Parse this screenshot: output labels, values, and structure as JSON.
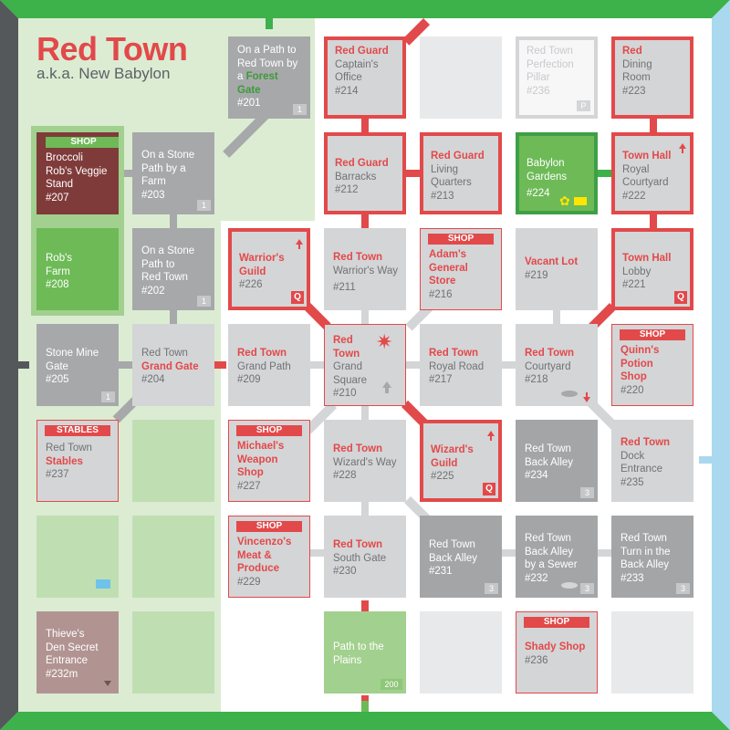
{
  "map": {
    "title": "Red Town",
    "subtitle": "a.k.a. New Babylon",
    "shop_label": "SHOP",
    "stables_label": "STABLES",
    "rooms": [
      {
        "key": "forest_gate_path",
        "lines": [
          "On a Path to",
          "Red Town by"
        ],
        "hl_line": "a ",
        "hl_word": "Forest Gate",
        "id": "#201",
        "badge": "1"
      },
      {
        "key": "veggie_stand",
        "lines": [
          "Broccoli",
          "Rob's Veggie",
          "Stand"
        ],
        "id": "#207"
      },
      {
        "key": "stone_path_farm",
        "lines": [
          "On a Stone",
          "Path by a",
          "Farm"
        ],
        "id": "#203",
        "badge": "1"
      },
      {
        "key": "robs_farm",
        "lines": [
          "Rob's",
          "Farm"
        ],
        "id": "#208"
      },
      {
        "key": "stone_path_town",
        "lines": [
          "On a Stone",
          "Path to",
          "Red Town"
        ],
        "id": "#202",
        "badge": "1"
      },
      {
        "key": "stone_mine_gate",
        "lines": [
          "Stone Mine",
          "Gate"
        ],
        "id": "#205",
        "badge": "1"
      },
      {
        "key": "grand_gate",
        "lines": [
          "Red Town"
        ],
        "hl": "Grand Gate",
        "id": "#204"
      },
      {
        "key": "stables",
        "lines": [
          "Red Town"
        ],
        "hl": "Stables",
        "id": "#237"
      },
      {
        "key": "thieves_den",
        "lines": [
          "Thieve's",
          "Den Secret",
          "Entrance"
        ],
        "id": "#232m"
      },
      {
        "key": "captains_office",
        "hl": "Red Guard",
        "lines": [
          "Captain's",
          "Office"
        ],
        "id": "#214"
      },
      {
        "key": "perfection_pillar",
        "lines": [
          "Red Town",
          "Perfection",
          "Pillar"
        ],
        "id": "#236",
        "badge": "P"
      },
      {
        "key": "dining_room",
        "hl": "Red",
        "lines": [
          "Dining",
          "Room"
        ],
        "id": "#223"
      },
      {
        "key": "barracks",
        "hl": "Red Guard",
        "lines": [
          "Barracks"
        ],
        "id": "#212"
      },
      {
        "key": "living_quarters",
        "hl": "Red Guard",
        "lines": [
          "Living",
          "Quarters"
        ],
        "id": "#213"
      },
      {
        "key": "babylon_gardens",
        "lines": [
          "Babylon",
          "Gardens"
        ],
        "id": "#224"
      },
      {
        "key": "royal_courtyard",
        "hl": "Town Hall",
        "lines": [
          "Royal",
          "Courtyard"
        ],
        "id": "#222"
      },
      {
        "key": "warriors_guild",
        "hl": "Warrior's",
        "hl2": "Guild",
        "id": "#226",
        "q": "Q"
      },
      {
        "key": "warriors_way",
        "hl": "Red Town",
        "lines": [
          "Warrior's Way"
        ],
        "id": "#211"
      },
      {
        "key": "general_store",
        "hl": "Adam's",
        "hl2": "General",
        "hl3": "Store",
        "id": "#216"
      },
      {
        "key": "vacant_lot",
        "hl": "Vacant Lot",
        "id": "#219"
      },
      {
        "key": "town_hall_lobby",
        "hl": "Town Hall",
        "lines": [
          "Lobby"
        ],
        "id": "#221",
        "q": "Q"
      },
      {
        "key": "grand_path",
        "hl": "Red Town",
        "lines": [
          "Grand Path"
        ],
        "id": "#209"
      },
      {
        "key": "grand_square",
        "hl": "Red",
        "hl2": "Town",
        "lines": [
          "Grand",
          "Square"
        ],
        "id": "#210"
      },
      {
        "key": "royal_road",
        "hl": "Red Town",
        "lines": [
          "Royal Road"
        ],
        "id": "#217"
      },
      {
        "key": "courtyard",
        "hl": "Red Town",
        "lines": [
          "Courtyard"
        ],
        "id": "#218"
      },
      {
        "key": "potion_shop",
        "hl": "Quinn's",
        "hl2": "Potion",
        "hl3": "Shop",
        "id": "#220"
      },
      {
        "key": "weapon_shop",
        "hl": "Michael's",
        "hl2": "Weapon",
        "hl3": "Shop",
        "id": "#227"
      },
      {
        "key": "wizards_way",
        "hl": "Red Town",
        "lines": [
          "Wizard's Way"
        ],
        "id": "#228"
      },
      {
        "key": "wizards_guild",
        "hl": "Wizard's",
        "hl2": "Guild",
        "id": "#225",
        "q": "Q"
      },
      {
        "key": "back_alley_234",
        "hl": "Red Town",
        "lines": [
          "Back Alley"
        ],
        "id": "#234",
        "badge": "3"
      },
      {
        "key": "dock_entrance",
        "hl": "Red Town",
        "lines": [
          "Dock",
          "Entrance"
        ],
        "id": "#235"
      },
      {
        "key": "meat_produce",
        "hl": "Vincenzo's",
        "hl2": "Meat &",
        "hl3": "Produce",
        "id": "#229"
      },
      {
        "key": "south_gate",
        "hl": "Red Town",
        "lines": [
          "South Gate"
        ],
        "id": "#230"
      },
      {
        "key": "back_alley_231",
        "hl": "Red Town",
        "lines": [
          "Back Alley"
        ],
        "id": "#231",
        "badge": "3"
      },
      {
        "key": "back_alley_sewer",
        "hl": "Red Town",
        "lines": [
          "Back Alley",
          "by a Sewer"
        ],
        "id": "#232",
        "badge": "3"
      },
      {
        "key": "turn_back_alley",
        "hl": "Red Town",
        "lines": [
          "Turn in the",
          "Back Alley"
        ],
        "id": "#233",
        "badge": "3"
      },
      {
        "key": "path_plains",
        "lines": [
          "Path to the",
          "Plains"
        ],
        "badge": "200"
      },
      {
        "key": "shady_shop",
        "hl": "Shady Shop",
        "id": "#236"
      }
    ]
  },
  "colors": {
    "red": "#e2494a",
    "green_border": "#3db14a",
    "gray_room": "#a7a8aa",
    "light_room": "#d4d5d7"
  },
  "icons": [
    "compass-star-icon",
    "up-arrow-icon",
    "down-arrow-icon",
    "manhole-icon",
    "flower-icon",
    "treasure-chest-icon"
  ]
}
